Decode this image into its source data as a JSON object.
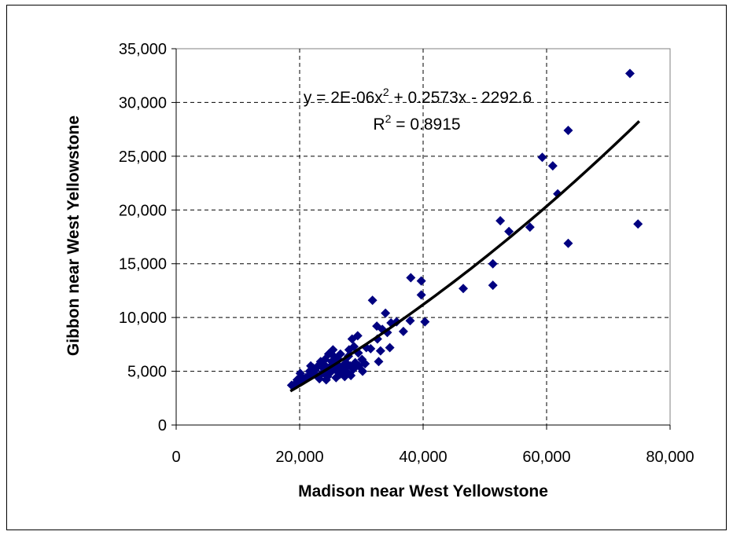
{
  "chart_data": {
    "type": "scatter",
    "title": "",
    "xlabel": "Madison near West Yellowstone",
    "ylabel": "Gibbon near West Yellowstone",
    "xlim": [
      0,
      80000
    ],
    "ylim": [
      0,
      35000
    ],
    "xticks": [
      0,
      20000,
      40000,
      60000,
      80000
    ],
    "xtick_labels": [
      "0",
      "20,000",
      "40,000",
      "60,000",
      "80,000"
    ],
    "yticks": [
      0,
      5000,
      10000,
      15000,
      20000,
      25000,
      30000,
      35000
    ],
    "ytick_labels": [
      "0",
      "5,000",
      "10,000",
      "15,000",
      "20,000",
      "25,000",
      "30,000",
      "35,000"
    ],
    "grid": true,
    "marker_color": "#000080",
    "trendline": {
      "type": "polynomial",
      "a": 2e-06,
      "b": 0.2573,
      "c": -2292.6,
      "x_range": [
        18500,
        75000
      ],
      "color": "#000000"
    },
    "equation": {
      "main": "y = 2E-06x",
      "exp": "2",
      "rest": " + 0.2573x - 2292.6"
    },
    "r_squared": {
      "label": "R",
      "exp": "2",
      "rest": " = 0.8915"
    },
    "points": [
      [
        73500,
        32700
      ],
      [
        63500,
        27400
      ],
      [
        59300,
        24900
      ],
      [
        61000,
        24100
      ],
      [
        61800,
        21500
      ],
      [
        52500,
        19000
      ],
      [
        53900,
        18000
      ],
      [
        57300,
        18400
      ],
      [
        74800,
        18700
      ],
      [
        63500,
        16900
      ],
      [
        51300,
        15000
      ],
      [
        51300,
        13000
      ],
      [
        46500,
        12700
      ],
      [
        38000,
        13700
      ],
      [
        39700,
        13400
      ],
      [
        39700,
        12100
      ],
      [
        40300,
        9600
      ],
      [
        37900,
        9700
      ],
      [
        36800,
        8700
      ],
      [
        31800,
        11600
      ],
      [
        33900,
        10400
      ],
      [
        34800,
        9500
      ],
      [
        35700,
        9600
      ],
      [
        32500,
        9200
      ],
      [
        33400,
        8900
      ],
      [
        34200,
        8600
      ],
      [
        32600,
        8000
      ],
      [
        34600,
        7200
      ],
      [
        33100,
        6900
      ],
      [
        32800,
        5900
      ],
      [
        30800,
        7200
      ],
      [
        31500,
        7100
      ],
      [
        29400,
        8300
      ],
      [
        28500,
        8000
      ],
      [
        28800,
        7300
      ],
      [
        28000,
        7000
      ],
      [
        29500,
        6700
      ],
      [
        30100,
        6100
      ],
      [
        30600,
        5700
      ],
      [
        30200,
        5000
      ],
      [
        29600,
        5500
      ],
      [
        29000,
        5800
      ],
      [
        28700,
        5200
      ],
      [
        28200,
        5500
      ],
      [
        27700,
        4900
      ],
      [
        27300,
        4500
      ],
      [
        27500,
        5800
      ],
      [
        27900,
        6400
      ],
      [
        26600,
        6600
      ],
      [
        26300,
        6100
      ],
      [
        26000,
        5700
      ],
      [
        26800,
        5400
      ],
      [
        27100,
        5000
      ],
      [
        26500,
        4700
      ],
      [
        25900,
        4400
      ],
      [
        25400,
        7000
      ],
      [
        25500,
        6400
      ],
      [
        25200,
        5900
      ],
      [
        24900,
        5400
      ],
      [
        25000,
        4900
      ],
      [
        24500,
        4500
      ],
      [
        24300,
        4200
      ],
      [
        24700,
        6600
      ],
      [
        24100,
        6100
      ],
      [
        24000,
        5600
      ],
      [
        23800,
        5300
      ],
      [
        23600,
        4800
      ],
      [
        23200,
        4300
      ],
      [
        22800,
        5400
      ],
      [
        22500,
        5100
      ],
      [
        22100,
        4800
      ],
      [
        22900,
        4500
      ],
      [
        23400,
        5900
      ],
      [
        22200,
        5300
      ],
      [
        21600,
        5000
      ],
      [
        21500,
        4600
      ],
      [
        21000,
        4400
      ],
      [
        20700,
        4200
      ],
      [
        20300,
        4500
      ],
      [
        19900,
        4000
      ],
      [
        19600,
        4200
      ],
      [
        19200,
        3800
      ],
      [
        18700,
        3700
      ],
      [
        20100,
        4800
      ],
      [
        21800,
        5500
      ],
      [
        26100,
        5000
      ],
      [
        27600,
        5400
      ],
      [
        28300,
        4600
      ],
      [
        25700,
        5200
      ],
      [
        24400,
        5000
      ]
    ]
  }
}
